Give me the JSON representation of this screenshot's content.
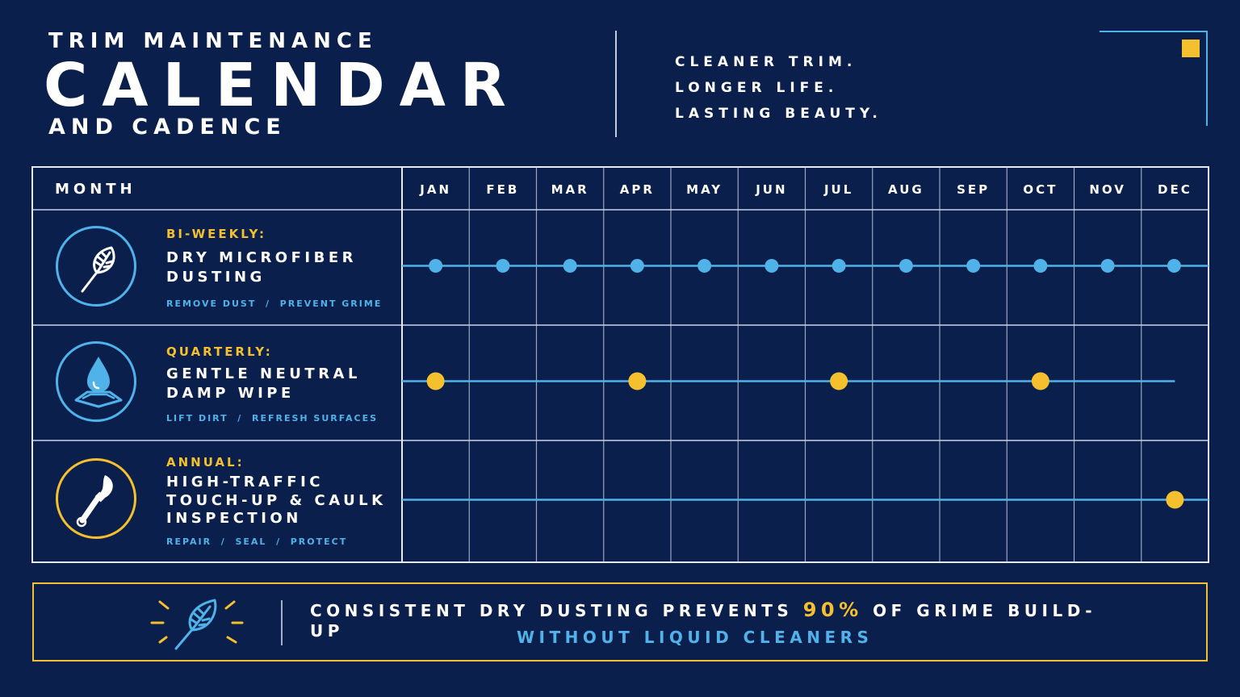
{
  "header": {
    "kicker": "TRIM MAINTENANCE",
    "title": "CALENDAR",
    "subtitle": "AND CADENCE",
    "taglines": [
      "CLEANER TRIM.",
      "LONGER LIFE.",
      "LASTING BEAUTY."
    ]
  },
  "colors": {
    "background": "#0b1f4d",
    "accent_blue": "#4fb3ea",
    "accent_gold": "#f5c02d",
    "grid_line": "#c9d3e6"
  },
  "table": {
    "month_header": "MONTH",
    "months": [
      "JAN",
      "FEB",
      "MAR",
      "APR",
      "MAY",
      "JUN",
      "JUL",
      "AUG",
      "SEP",
      "OCT",
      "NOV",
      "DEC"
    ],
    "rows": [
      {
        "frequency": "BI-WEEKLY:",
        "task": "DRY MICROFIBER\nDUSTING",
        "tags": "REMOVE DUST  /  PREVENT GRIME",
        "icon": "feather-duster-icon",
        "ring_color": "#4fb3ea",
        "marker_color": "#4fb3ea",
        "active_months": [
          1,
          2,
          3,
          4,
          5,
          6,
          7,
          8,
          9,
          10,
          11,
          12
        ]
      },
      {
        "frequency": "QUARTERLY:",
        "task": "GENTLE NEUTRAL\nDAMP WIPE",
        "tags": "LIFT DIRT  /  REFRESH SURFACES",
        "icon": "water-drop-icon",
        "ring_color": "#4fb3ea",
        "marker_color": "#f5c02d",
        "active_months": [
          1,
          4,
          7,
          10
        ]
      },
      {
        "frequency": "ANNUAL:",
        "task": "HIGH-TRAFFIC\nTOUCH-UP & CAULK\nINSPECTION",
        "tags": "REPAIR  /  SEAL  /  PROTECT",
        "icon": "paint-brush-icon",
        "ring_color": "#f5c02d",
        "marker_color": "#f5c02d",
        "active_months": [
          12
        ]
      }
    ]
  },
  "callout": {
    "line1_before": "CONSISTENT DRY DUSTING PREVENTS ",
    "line1_pct": "90%",
    "line1_after": " OF GRIME BUILD-UP",
    "line2": "WITHOUT LIQUID CLEANERS",
    "icon": "feather-duster-icon"
  }
}
